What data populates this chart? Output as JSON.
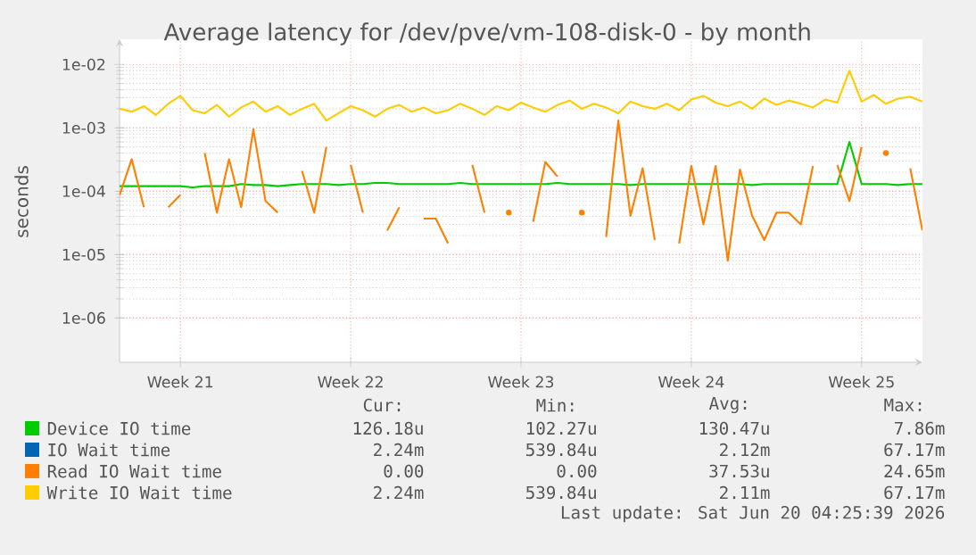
{
  "chart_data": {
    "type": "line",
    "title": "Average latency for /dev/pve/vm-108-disk-0 - by month",
    "ylabel": "seconds",
    "log": "y",
    "grid": true,
    "legend": "bottom",
    "ylim": [
      2e-07,
      0.025
    ],
    "yticks": [
      {
        "value": 1e-06,
        "label": "1e-06"
      },
      {
        "value": 1e-05,
        "label": "1e-05"
      },
      {
        "value": 0.0001,
        "label": "1e-04"
      },
      {
        "value": 0.001,
        "label": "1e-03"
      },
      {
        "value": 0.01,
        "label": "1e-02"
      }
    ],
    "categories": [
      null,
      null,
      null,
      null,
      null,
      "Week 21",
      null,
      null,
      null,
      null,
      null,
      null,
      null,
      null,
      null,
      null,
      null,
      null,
      null,
      "Week 22",
      null,
      null,
      null,
      null,
      null,
      null,
      null,
      null,
      null,
      null,
      null,
      null,
      null,
      "Week 23",
      null,
      null,
      null,
      null,
      null,
      null,
      null,
      null,
      null,
      null,
      null,
      null,
      null,
      "Week 24",
      null,
      null,
      null,
      null,
      null,
      null,
      null,
      null,
      null,
      null,
      null,
      null,
      null,
      "Week 25",
      null,
      null,
      null,
      null,
      null
    ],
    "series": [
      {
        "name": "Device IO time",
        "color": "#00cc00",
        "values": [
          0.00012,
          0.00012,
          0.00012,
          0.00012,
          0.00012,
          0.00012,
          0.000115,
          0.00012,
          0.00012,
          0.00012,
          0.00013,
          0.000125,
          0.000125,
          0.00012,
          0.000125,
          0.00013,
          0.00013,
          0.00013,
          0.000125,
          0.00013,
          0.00013,
          0.000135,
          0.000135,
          0.00013,
          0.00013,
          0.00013,
          0.00013,
          0.00013,
          0.000135,
          0.00013,
          0.00013,
          0.00013,
          0.00013,
          0.00013,
          0.00013,
          0.00013,
          0.000135,
          0.00013,
          0.00013,
          0.00013,
          0.00013,
          0.00013,
          0.000125,
          0.00013,
          0.00013,
          0.00013,
          0.00013,
          0.00013,
          0.00013,
          0.00013,
          0.00013,
          0.00013,
          0.000125,
          0.00013,
          0.00013,
          0.00013,
          0.00013,
          0.00013,
          0.00013,
          0.00013,
          0.0006,
          0.00013,
          0.00013,
          0.00013,
          0.000125,
          0.00013,
          0.00013
        ]
      },
      {
        "name": "IO Wait time",
        "color": "#0066b3",
        "values": [
          null,
          null,
          null,
          null,
          null,
          null,
          null,
          null,
          null,
          null,
          null,
          null,
          null,
          null,
          null,
          null,
          null,
          null,
          null,
          null,
          null,
          null,
          null,
          null,
          null,
          null,
          null,
          null,
          null,
          null,
          null,
          null,
          null,
          null,
          null,
          null,
          null,
          null,
          null,
          null,
          null,
          null,
          null,
          null,
          null,
          null,
          null,
          null,
          null,
          null,
          null,
          null,
          null,
          null,
          null,
          null,
          null,
          null,
          null,
          null,
          null,
          null,
          null,
          null,
          null,
          null,
          null
        ]
      },
      {
        "name": "Read IO Wait time",
        "color": "#ff8000",
        "values": [
          8.7e-05,
          0.00032,
          5.6e-05,
          null,
          5.6e-05,
          8.7e-05,
          null,
          0.0004,
          4.6e-05,
          0.00032,
          5.6e-05,
          0.00095,
          7e-05,
          4.6e-05,
          null,
          0.00021,
          4.6e-05,
          0.0005,
          null,
          0.00026,
          4.6e-05,
          null,
          2.4e-05,
          5.6e-05,
          null,
          3.7e-05,
          3.7e-05,
          1.5e-05,
          null,
          0.00026,
          4.6e-05,
          null,
          4.6e-05,
          null,
          3.3e-05,
          0.00029,
          0.00017,
          null,
          4.6e-05,
          null,
          1.9e-05,
          0.0013,
          4.1e-05,
          0.00023,
          1.7e-05,
          null,
          1.5e-05,
          0.00025,
          3e-05,
          0.00025,
          8e-06,
          0.00022,
          4.1e-05,
          1.7e-05,
          4.6e-05,
          4.6e-05,
          3e-05,
          0.00025,
          null,
          0.00026,
          7e-05,
          0.0005,
          null,
          0.0004,
          null,
          0.00023,
          2.4e-05
        ]
      },
      {
        "name": "Write IO Wait time",
        "color": "#ffcc00",
        "values": [
          0.002,
          0.0018,
          0.0022,
          0.0016,
          0.0024,
          0.0032,
          0.0019,
          0.0017,
          0.0023,
          0.0015,
          0.0021,
          0.0026,
          0.0018,
          0.0022,
          0.0016,
          0.002,
          0.0024,
          0.0013,
          0.0017,
          0.0022,
          0.0019,
          0.0015,
          0.002,
          0.0023,
          0.0018,
          0.0021,
          0.0017,
          0.0019,
          0.0024,
          0.002,
          0.0016,
          0.0022,
          0.0019,
          0.0025,
          0.0021,
          0.0018,
          0.0023,
          0.0027,
          0.002,
          0.0024,
          0.0021,
          0.0017,
          0.0026,
          0.0022,
          0.002,
          0.0024,
          0.0019,
          0.0028,
          0.0032,
          0.0025,
          0.0022,
          0.0026,
          0.002,
          0.0029,
          0.0023,
          0.0027,
          0.0024,
          0.0021,
          0.0028,
          0.0025,
          0.008,
          0.0026,
          0.0033,
          0.0024,
          0.0029,
          0.0031,
          0.0026
        ]
      }
    ],
    "annotations": [
      "Cur:",
      "Min:",
      "Avg:",
      "Max:",
      "126.18u",
      "102.27u",
      "130.47u",
      "7.86m",
      "2.24m",
      "539.84u",
      "2.12m",
      "67.17m",
      "0.00",
      "0.00",
      "37.53u",
      "24.65m",
      "2.24m",
      "539.84u",
      "2.11m",
      "67.17m",
      "Last update: Sat Jun 20 04:25:39 2026"
    ]
  }
}
